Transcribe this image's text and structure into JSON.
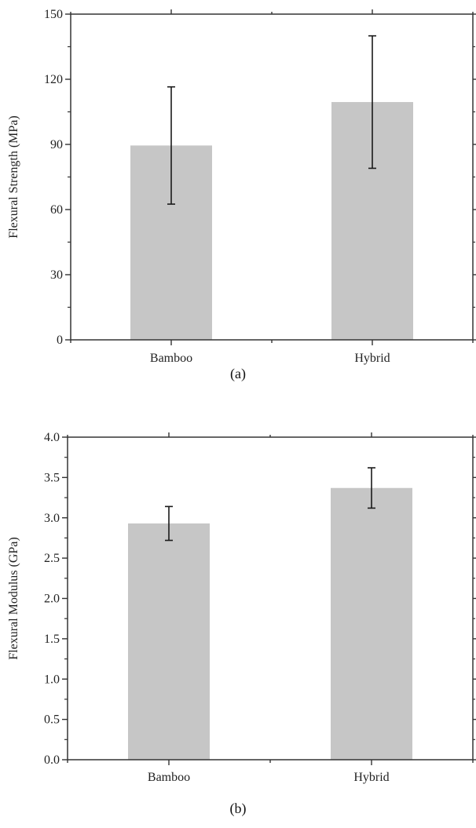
{
  "chart_data": [
    {
      "type": "bar",
      "caption": "(a)",
      "categories": [
        "Bamboo",
        "Hybrid"
      ],
      "values": [
        89.5,
        109.5
      ],
      "errors": [
        27.0,
        30.5
      ],
      "ylabel": "Flexural Strength (MPa)",
      "ylim": [
        0,
        150
      ],
      "yticks": [
        0,
        30,
        60,
        90,
        120,
        150
      ],
      "ytick_labels": [
        "0",
        "30",
        "60",
        "90",
        "120",
        "150"
      ],
      "bar_color": "#c6c6c6",
      "grid": false
    },
    {
      "type": "bar",
      "caption": "(b)",
      "categories": [
        "Bamboo",
        "Hybrid"
      ],
      "values": [
        2.93,
        3.37
      ],
      "errors": [
        0.21,
        0.25
      ],
      "ylabel": "Flexural Modulus (GPa)",
      "ylim": [
        0,
        4.0
      ],
      "yticks": [
        0,
        0.5,
        1.0,
        1.5,
        2.0,
        2.5,
        3.0,
        3.5,
        4.0
      ],
      "ytick_labels": [
        "0.0",
        "0.5",
        "1.0",
        "1.5",
        "2.0",
        "2.5",
        "3.0",
        "3.5",
        "4.0"
      ],
      "bar_color": "#c6c6c6",
      "grid": false
    }
  ]
}
